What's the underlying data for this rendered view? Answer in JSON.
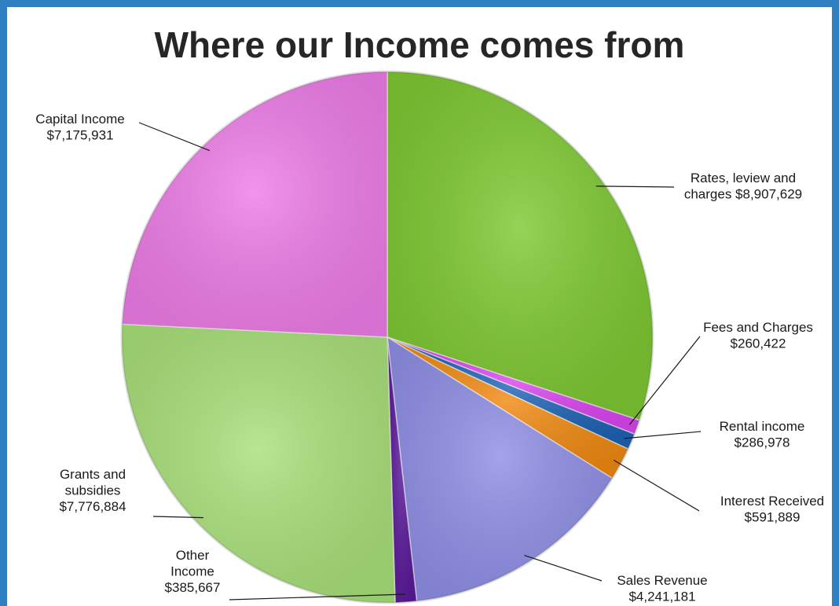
{
  "chart_data": {
    "type": "pie",
    "title": "Where our Income comes from",
    "slices": [
      {
        "label_lines": [
          "Rates, leview and",
          "charges $8,907,629"
        ],
        "name": "Rates, leview and charges",
        "value": 8907629,
        "color": "#7ec832"
      },
      {
        "label_lines": [
          "Fees and Charges",
          "$260,422"
        ],
        "name": "Fees and Charges",
        "value": 260422,
        "color": "#d946ef"
      },
      {
        "label_lines": [
          "Rental income",
          "$286,978"
        ],
        "name": "Rental income",
        "value": 286978,
        "color": "#1f63b5"
      },
      {
        "label_lines": [
          "Interest Received",
          "$591,889"
        ],
        "name": "Interest Received",
        "value": 591889,
        "color": "#f08a12"
      },
      {
        "label_lines": [
          "Sales Revenue",
          "$4,241,181"
        ],
        "name": "Sales Revenue",
        "value": 4241181,
        "color": "#8f8fe6"
      },
      {
        "label_lines": [
          "Other",
          "Income",
          "$385,667"
        ],
        "name": "Other Income",
        "value": 385667,
        "color": "#5b1a9a"
      },
      {
        "label_lines": [
          "Grants and",
          "subsidies",
          "$7,776,884"
        ],
        "name": "Grants and subsidies",
        "value": 7776884,
        "color": "#a9e07a"
      },
      {
        "label_lines": [
          "Capital Income",
          "$7,175,931"
        ],
        "name": "Capital Income",
        "value": 7175931,
        "color": "#ee7de8"
      }
    ],
    "start_angle": "12 o'clock",
    "direction": "clockwise",
    "legend": "none",
    "data_labels": "outside with leader lines"
  },
  "frame": {
    "border_color": "#2f7fc1"
  }
}
